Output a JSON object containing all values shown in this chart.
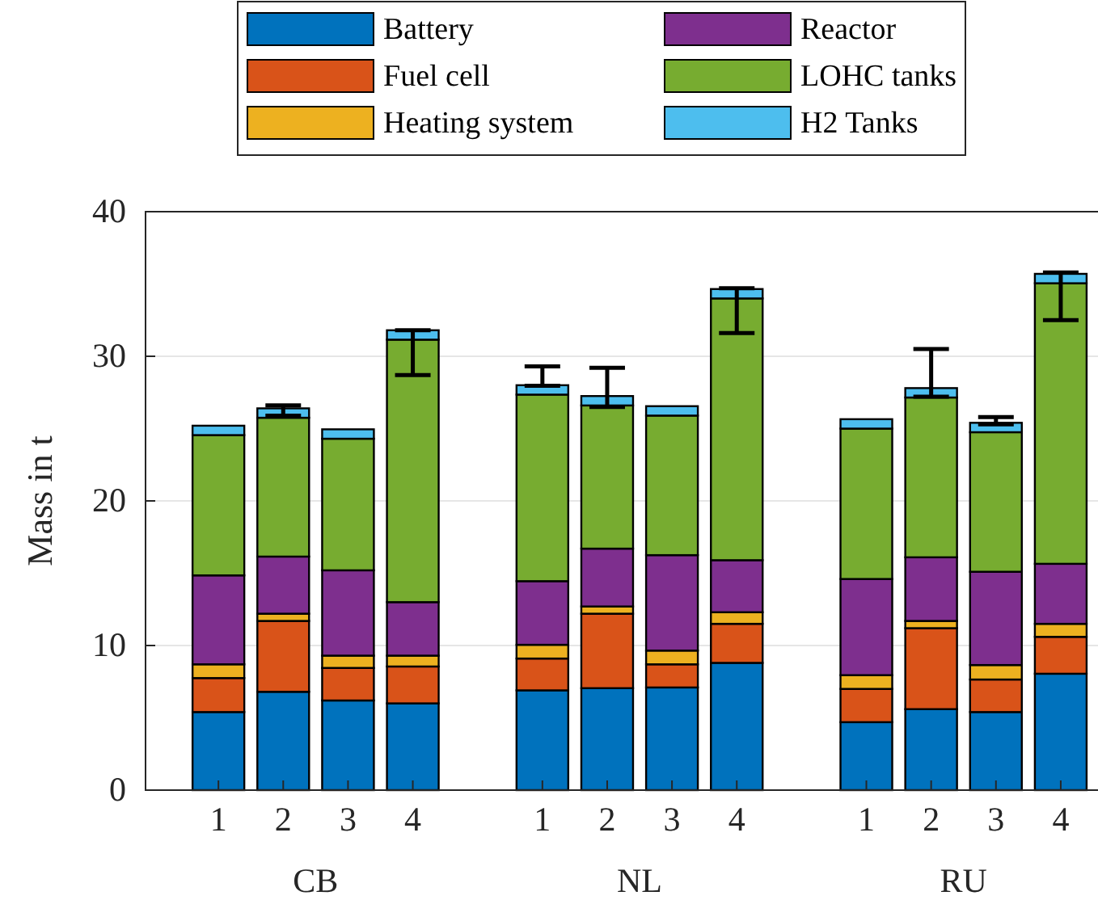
{
  "chart_data": {
    "type": "bar",
    "stacked": true,
    "ylabel": "Mass in t",
    "ylim": [
      0,
      40
    ],
    "yticks": [
      0,
      10,
      20,
      30,
      40
    ],
    "grid": "y",
    "legend": "top",
    "categories": [
      "1",
      "2",
      "3",
      "4",
      null,
      "1",
      "2",
      "3",
      "4",
      null,
      "1",
      "2",
      "3",
      "4"
    ],
    "annotations": [
      "CB",
      "NL",
      "RU"
    ],
    "series": [
      {
        "name": "Battery",
        "color": "#0072bd",
        "values": [
          5.4,
          6.8,
          6.2,
          6.0,
          null,
          6.9,
          7.05,
          7.1,
          8.8,
          null,
          4.7,
          5.6,
          5.4,
          8.05
        ]
      },
      {
        "name": "Fuel cell",
        "color": "#d95319",
        "values": [
          2.35,
          4.9,
          2.25,
          2.55,
          null,
          2.2,
          5.15,
          1.6,
          2.7,
          null,
          2.3,
          5.6,
          2.25,
          2.55
        ]
      },
      {
        "name": "Heating system",
        "color": "#edb120",
        "values": [
          0.95,
          0.5,
          0.85,
          0.75,
          null,
          0.95,
          0.5,
          0.95,
          0.8,
          null,
          0.95,
          0.5,
          1.0,
          0.9
        ]
      },
      {
        "name": "Reactor",
        "color": "#7e2f8e",
        "values": [
          6.15,
          3.95,
          5.9,
          3.7,
          null,
          4.4,
          4.0,
          6.6,
          3.6,
          null,
          6.65,
          4.4,
          6.45,
          4.15
        ]
      },
      {
        "name": "LOHC tanks",
        "color": "#77ac30",
        "values": [
          9.7,
          9.6,
          9.1,
          18.15,
          null,
          12.9,
          9.9,
          9.65,
          18.1,
          null,
          10.4,
          11.05,
          9.65,
          19.4
        ]
      },
      {
        "name": "H2 Tanks",
        "color": "#4dbeee",
        "values": [
          0.65,
          0.65,
          0.65,
          0.65,
          null,
          0.65,
          0.65,
          0.65,
          0.65,
          null,
          0.65,
          0.65,
          0.65,
          0.65
        ],
        "errors": [
          null,
          [
            25.9,
            26.6
          ],
          null,
          [
            28.7,
            31.8
          ],
          null,
          [
            27.96,
            29.3
          ],
          [
            26.5,
            29.2
          ],
          null,
          [
            31.6,
            34.7
          ],
          null,
          null,
          [
            27.2,
            30.5
          ],
          [
            25.3,
            25.8
          ],
          [
            32.5,
            35.8
          ]
        ]
      }
    ]
  }
}
